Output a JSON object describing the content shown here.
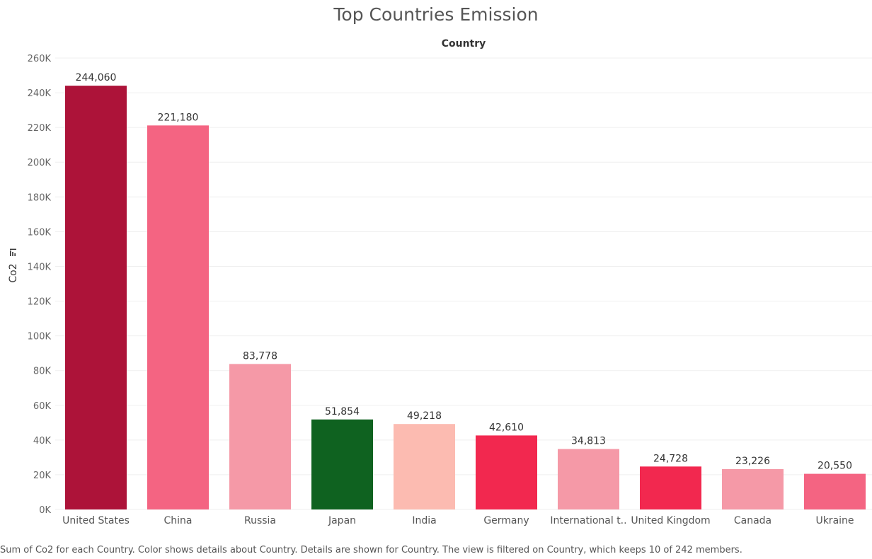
{
  "chart_data": {
    "type": "bar",
    "title": "Top Countries Emission",
    "column_header": "Country",
    "ylabel": "Co2",
    "ylim": [
      0,
      260000
    ],
    "yticks": [
      {
        "value": 0,
        "label": "0K"
      },
      {
        "value": 20000,
        "label": "20K"
      },
      {
        "value": 40000,
        "label": "40K"
      },
      {
        "value": 60000,
        "label": "60K"
      },
      {
        "value": 80000,
        "label": "80K"
      },
      {
        "value": 100000,
        "label": "100K"
      },
      {
        "value": 120000,
        "label": "120K"
      },
      {
        "value": 140000,
        "label": "140K"
      },
      {
        "value": 160000,
        "label": "160K"
      },
      {
        "value": 180000,
        "label": "180K"
      },
      {
        "value": 200000,
        "label": "200K"
      },
      {
        "value": 220000,
        "label": "220K"
      },
      {
        "value": 240000,
        "label": "240K"
      },
      {
        "value": 260000,
        "label": "260K"
      }
    ],
    "grid": true,
    "categories": [
      "United States",
      "China",
      "Russia",
      "Japan",
      "India",
      "Germany",
      "International t..",
      "United Kingdom",
      "Canada",
      "Ukraine"
    ],
    "values": [
      244060,
      221180,
      83778,
      51854,
      49218,
      42610,
      34813,
      24728,
      23226,
      20550
    ],
    "value_labels": [
      "244,060",
      "221,180",
      "83,778",
      "51,854",
      "49,218",
      "42,610",
      "34,813",
      "24,728",
      "23,226",
      "20,550"
    ],
    "colors": [
      "#ad1339",
      "#f46482",
      "#f599a7",
      "#0f6220",
      "#fcbbb1",
      "#f2284f",
      "#f599a7",
      "#f2284f",
      "#f599a7",
      "#f46482"
    ]
  },
  "footer": {
    "caption": "Sum of Co2 for each Country.  Color shows details about Country.  Details are shown for Country. The view is filtered on Country, which keeps 10 of 242 members."
  }
}
